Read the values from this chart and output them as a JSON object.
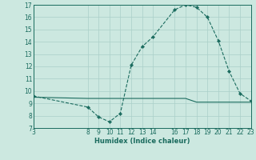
{
  "xlabel": "Humidex (Indice chaleur)",
  "xlim": [
    3,
    23
  ],
  "ylim": [
    7,
    17
  ],
  "xticks": [
    3,
    8,
    9,
    10,
    11,
    12,
    13,
    14,
    16,
    17,
    18,
    19,
    20,
    21,
    22,
    23
  ],
  "yticks": [
    7,
    8,
    9,
    10,
    11,
    12,
    13,
    14,
    15,
    16,
    17
  ],
  "bg_color": "#cce8e0",
  "grid_color": "#aacfc8",
  "line_color": "#1a6b5e",
  "curve1_x": [
    3,
    8,
    9,
    10,
    11,
    12,
    13,
    14,
    16,
    17,
    18,
    19,
    20,
    21,
    22,
    23
  ],
  "curve1_y": [
    9.6,
    8.7,
    7.9,
    7.5,
    8.2,
    12.1,
    13.6,
    14.4,
    16.6,
    17.0,
    16.8,
    16.0,
    14.1,
    11.6,
    9.8,
    9.2
  ],
  "curve2_x": [
    3,
    8,
    9,
    10,
    11,
    12,
    13,
    14,
    15,
    16,
    17,
    18,
    19,
    20,
    21,
    22,
    23
  ],
  "curve2_y": [
    9.5,
    9.4,
    9.4,
    9.4,
    9.4,
    9.4,
    9.4,
    9.4,
    9.4,
    9.4,
    9.4,
    9.1,
    9.1,
    9.1,
    9.1,
    9.1,
    9.1
  ],
  "tick_fontsize": 5.5,
  "xlabel_fontsize": 6.0
}
